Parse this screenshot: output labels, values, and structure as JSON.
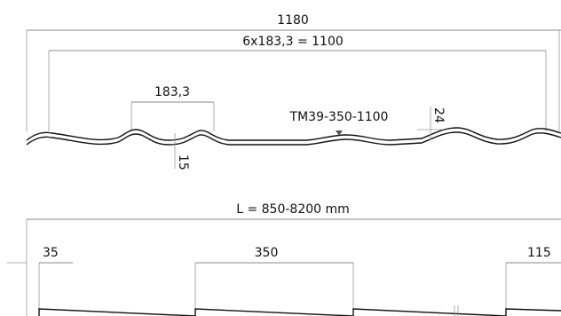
{
  "dimensions": {
    "total_width": "1180",
    "effective_width": "6x183,3 = 1100",
    "wave_pitch": "183,3",
    "model": "TM39-350-1100",
    "height": "24",
    "step": "15",
    "length": "L = 850-8200 mm",
    "start_offset": "35",
    "module": "350",
    "end_offset": "115"
  },
  "colors": {
    "profile": "#111111",
    "dimension": "#8a8a8a"
  }
}
